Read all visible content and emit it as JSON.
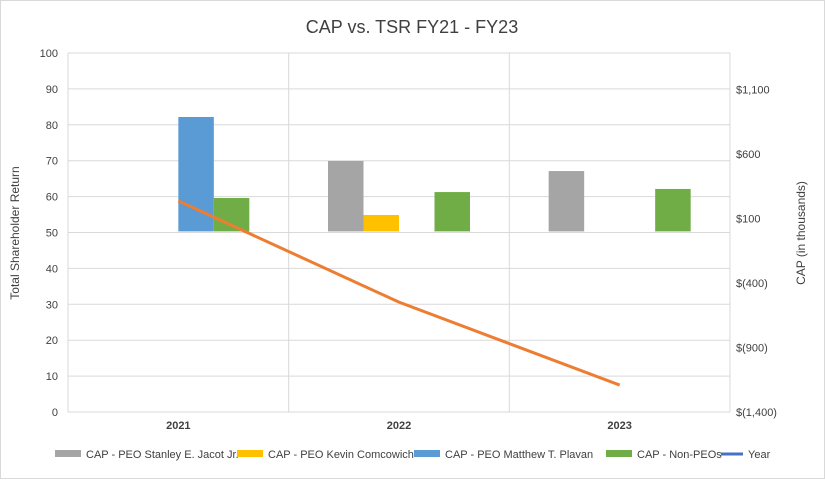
{
  "chart_data": {
    "type": "bar+line",
    "title": "CAP vs. TSR FY21 - FY23",
    "categories": [
      "2021",
      "2022",
      "2023"
    ],
    "ylabel": "Total Shareholder Return",
    "y2label": "CAP (in thousands)",
    "ylim": [
      0,
      100
    ],
    "yticks": [
      0,
      10,
      20,
      30,
      40,
      50,
      60,
      70,
      80,
      90,
      100
    ],
    "y2lim": [
      -1400,
      1383
    ],
    "y2ticks": [
      -1400,
      -900,
      -400,
      100,
      600,
      1100
    ],
    "y2tick_labels": [
      "$(1,400)",
      "$(900)",
      "$(400)",
      "$100",
      "$600",
      "$1,100"
    ],
    "grid": true,
    "legend_placement": "bottom",
    "series": [
      {
        "name": "CAP - PEO Stanley E. Jacot Jr.",
        "kind": "bar",
        "axis": "right",
        "color": "#a5a5a5",
        "values": [
          null,
          546,
          468
        ]
      },
      {
        "name": "CAP - PEO Kevin Comcowich",
        "kind": "bar",
        "axis": "right",
        "color": "#ffc000",
        "values": [
          null,
          127,
          null
        ]
      },
      {
        "name": "CAP - PEO Matthew T. Plavan",
        "kind": "bar",
        "axis": "right",
        "color": "#5b9bd5",
        "values": [
          887,
          null,
          null
        ]
      },
      {
        "name": "CAP - Non-PEOs",
        "kind": "bar",
        "axis": "right",
        "color": "#70ad47",
        "values": [
          259,
          305,
          329
        ]
      },
      {
        "name": "Year",
        "kind": "line",
        "axis": "left",
        "color": "#4472c4",
        "line_color": "#ed7d31",
        "values": [
          58.8,
          30.6,
          7.5
        ]
      }
    ]
  }
}
